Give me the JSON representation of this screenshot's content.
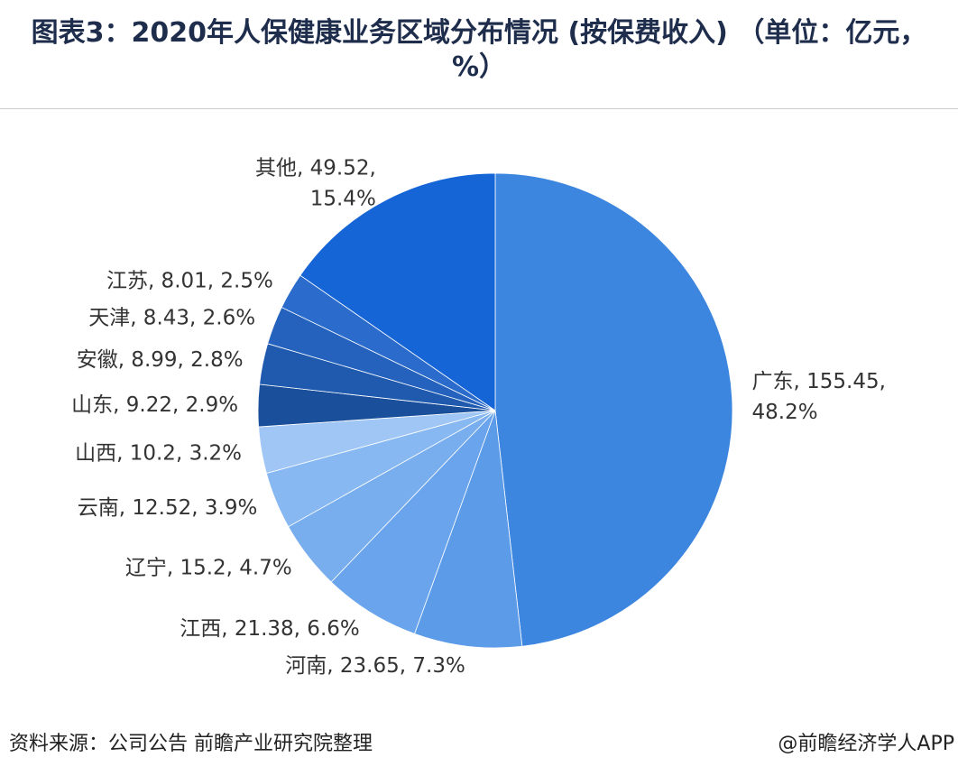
{
  "chart_data": {
    "type": "pie",
    "title": "图表3：2020年人保健康业务区域分布情况 (按保费收入) （单位：亿元，%）",
    "categories": [
      "广东",
      "河南",
      "江西",
      "辽宁",
      "云南",
      "山西",
      "山东",
      "安徽",
      "天津",
      "江苏",
      "其他"
    ],
    "values": [
      155.45,
      23.65,
      21.38,
      15.2,
      12.52,
      10.2,
      9.22,
      8.99,
      8.43,
      8.01,
      49.52
    ],
    "value_labels": [
      [
        "广东, 155.45,",
        "48.2%"
      ],
      [
        "河南, 23.65, 7.3%"
      ],
      [
        "江西, 21.38, 6.6%"
      ],
      [
        "辽宁, 15.2, 4.7%"
      ],
      [
        "云南, 12.52, 3.9%"
      ],
      [
        "山西, 10.2, 3.2%"
      ],
      [
        "山东, 9.22, 2.9%"
      ],
      [
        "安徽, 8.99, 2.8%"
      ],
      [
        "天津, 8.43, 2.6%"
      ],
      [
        "江苏, 8.01, 2.5%"
      ],
      [
        "其他, 49.52,",
        "15.4%"
      ]
    ],
    "colors": [
      "#3d86e0",
      "#5b9be8",
      "#69a4ec",
      "#78aeee",
      "#87b8f1",
      "#a0c6f6",
      "#1a4f9c",
      "#1f5aaf",
      "#2462bd",
      "#2a6bcb",
      "#1565d6"
    ]
  },
  "source": "资料来源：公司公告 前瞻产业研究院整理",
  "credit": "@前瞻经济学人APP"
}
